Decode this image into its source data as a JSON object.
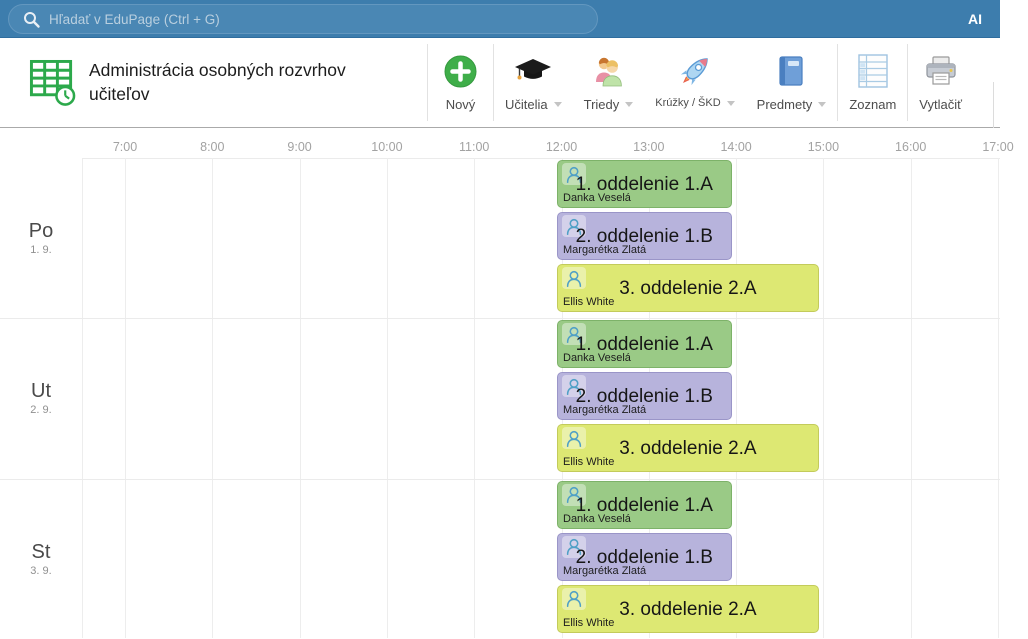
{
  "topbar": {
    "search_placeholder": "Hľadať v EduPage (Ctrl + G)",
    "ai_label": "AI"
  },
  "header": {
    "title": "Administrácia osobných rozvrhov učiteľov"
  },
  "toolbar": {
    "buttons": [
      {
        "label": "Nový",
        "icon": "plus-icon",
        "caret": false
      },
      {
        "label": "Učitelia",
        "icon": "graduation-cap-icon",
        "caret": true
      },
      {
        "label": "Triedy",
        "icon": "students-icon",
        "caret": true
      },
      {
        "label": "Krúžky / ŠKD",
        "icon": "rocket-icon",
        "caret": true
      },
      {
        "label": "Predmety",
        "icon": "book-icon",
        "caret": true
      },
      {
        "label": "Zoznam",
        "icon": "list-icon",
        "caret": false
      },
      {
        "label": "Vytlačiť",
        "icon": "printer-icon",
        "caret": false
      }
    ]
  },
  "timetable": {
    "hours": [
      "7:00",
      "8:00",
      "9:00",
      "10:00",
      "11:00",
      "12:00",
      "13:00",
      "14:00",
      "15:00",
      "16:00",
      "17:00"
    ],
    "days": [
      {
        "label": "Po",
        "date": "1. 9."
      },
      {
        "label": "Ut",
        "date": "2. 9."
      },
      {
        "label": "St",
        "date": "3. 9."
      }
    ],
    "events_per_day": [
      {
        "title": "1. oddelenie 1.A",
        "teacher": "Danka Veselá",
        "start": "12:00",
        "end": "14:00",
        "bg": "#9aca86",
        "border": "#7db269"
      },
      {
        "title": "2. oddelenie 1.B",
        "teacher": "Margarétka Zlatá",
        "start": "12:00",
        "end": "14:00",
        "bg": "#b7b3dc",
        "border": "#9a95c8"
      },
      {
        "title": "3. oddelenie 2.A",
        "teacher": "Ellis White",
        "start": "12:00",
        "end": "15:00",
        "bg": "#dde873",
        "border": "#c3cb5b"
      }
    ]
  },
  "colors": {
    "topbar_bg": "#3d7dad",
    "accent_green": "#2ca94b",
    "new_button_green": "#3fae49",
    "event_icon_stroke": "#4fa0c6",
    "grid_line": "#ededed"
  }
}
